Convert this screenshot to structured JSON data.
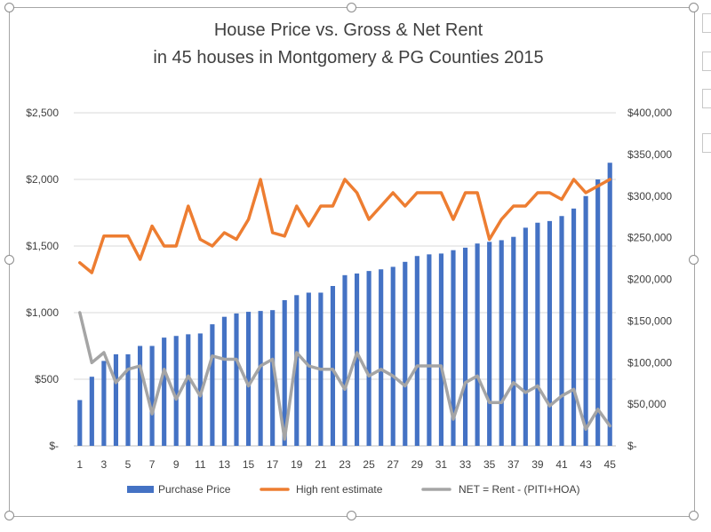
{
  "chart_data": {
    "type": "bar+line",
    "title": [
      "House Price vs. Gross & Net Rent",
      "in 45 houses in Montgomery & PG Counties 2015"
    ],
    "x": [
      1,
      2,
      3,
      4,
      5,
      6,
      7,
      8,
      9,
      10,
      11,
      12,
      13,
      14,
      15,
      16,
      17,
      18,
      19,
      20,
      21,
      22,
      23,
      24,
      25,
      26,
      27,
      28,
      29,
      30,
      31,
      32,
      33,
      34,
      35,
      36,
      37,
      38,
      39,
      40,
      41,
      42,
      43,
      44,
      45
    ],
    "x_tick_labels": [
      "1",
      "3",
      "5",
      "7",
      "9",
      "11",
      "13",
      "15",
      "17",
      "19",
      "21",
      "23",
      "25",
      "27",
      "29",
      "31",
      "33",
      "35",
      "37",
      "39",
      "41",
      "43",
      "45"
    ],
    "y_left": {
      "range": [
        0,
        2500
      ],
      "tick_labels": [
        "$-",
        "$500",
        "$1,000",
        "$1,500",
        "$2,000",
        "$2,500"
      ]
    },
    "y_right": {
      "range": [
        0,
        400000
      ],
      "tick_labels": [
        "$-",
        "$50,000",
        "$100,000",
        "$150,000",
        "$200,000",
        "$250,000",
        "$300,000",
        "$350,000",
        "$400,000"
      ]
    },
    "grid": true,
    "legend_position": "bottom",
    "series": [
      {
        "name": "Purchase Price",
        "kind": "bar",
        "axis": "right",
        "color": "#4472c4",
        "values": [
          55000,
          83000,
          102000,
          110000,
          110000,
          120000,
          120000,
          130000,
          132000,
          134000,
          135000,
          146000,
          155000,
          159000,
          161000,
          162000,
          163000,
          175000,
          181000,
          184000,
          184000,
          192000,
          205000,
          207000,
          210000,
          212000,
          215000,
          221000,
          228000,
          230000,
          231000,
          235000,
          238000,
          243000,
          245000,
          247000,
          251000,
          262000,
          268000,
          270000,
          276000,
          285000,
          300000,
          320000,
          340000
        ]
      },
      {
        "name": "High rent estimate",
        "kind": "line",
        "axis": "left",
        "color": "#ed7d31",
        "values": [
          1375,
          1300,
          1575,
          1575,
          1575,
          1400,
          1650,
          1500,
          1500,
          1800,
          1550,
          1500,
          1600,
          1550,
          1700,
          2000,
          1600,
          1575,
          1800,
          1650,
          1800,
          1800,
          2000,
          1900,
          1700,
          1800,
          1900,
          1800,
          1900,
          1900,
          1900,
          1700,
          1900,
          1900,
          1550,
          1700,
          1800,
          1800,
          1900,
          1900,
          1850,
          2000,
          1900,
          1950,
          2000
        ]
      },
      {
        "name": "NET = Rent - (PITI+HOA)",
        "kind": "line",
        "axis": "left",
        "color": "#a5a5a5",
        "values": [
          1000,
          625,
          700,
          475,
          575,
          600,
          240,
          575,
          350,
          525,
          375,
          675,
          650,
          650,
          450,
          600,
          650,
          50,
          700,
          600,
          575,
          575,
          425,
          700,
          525,
          575,
          525,
          450,
          600,
          600,
          600,
          200,
          475,
          525,
          325,
          325,
          475,
          400,
          450,
          300,
          375,
          425,
          125,
          275,
          150
        ]
      }
    ]
  }
}
